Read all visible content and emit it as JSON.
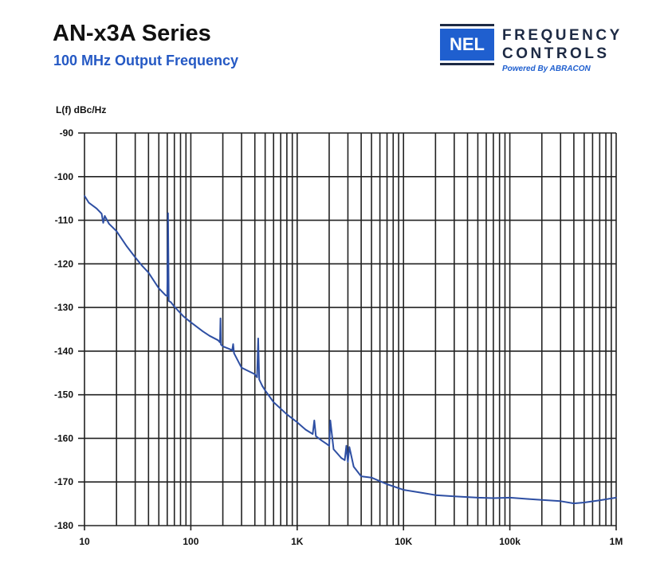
{
  "header": {
    "title": "AN-x3A Series",
    "subtitle": "100 MHz Output Frequency"
  },
  "logo": {
    "box_text": "NEL",
    "line1": "FREQUENCY",
    "line2": "CONTROLS",
    "powered": "Powered By ABRACON",
    "colors": {
      "blue": "#1f5fcf",
      "navy": "#1d2a44"
    }
  },
  "chart_data": {
    "type": "line",
    "title": "AN-x3A Series",
    "subtitle": "100 MHz Output Frequency",
    "xlabel": "",
    "ylabel": "L(f) dBc/Hz",
    "xscale": "log",
    "xlim": [
      10,
      1000000
    ],
    "ylim": [
      -180,
      -90
    ],
    "grid": true,
    "line_color": "#2e4fa3",
    "x_ticks": [
      {
        "value": 10,
        "label": "10"
      },
      {
        "value": 100,
        "label": "100"
      },
      {
        "value": 1000,
        "label": "1K"
      },
      {
        "value": 10000,
        "label": "10K"
      },
      {
        "value": 100000,
        "label": "100k"
      },
      {
        "value": 1000000,
        "label": "1M"
      }
    ],
    "y_ticks": [
      {
        "value": -90,
        "label": "-90"
      },
      {
        "value": -100,
        "label": "-100"
      },
      {
        "value": -110,
        "label": "-110"
      },
      {
        "value": -120,
        "label": "-120"
      },
      {
        "value": -130,
        "label": "-130"
      },
      {
        "value": -140,
        "label": "-140"
      },
      {
        "value": -150,
        "label": "-150"
      },
      {
        "value": -160,
        "label": "-160"
      },
      {
        "value": -170,
        "label": "-170"
      },
      {
        "value": -180,
        "label": "-180"
      }
    ],
    "series": [
      {
        "x": [
          10,
          11,
          13,
          14.5,
          15,
          15.5,
          17,
          20,
          25,
          30,
          35,
          40,
          50,
          58,
          60,
          61,
          62,
          65,
          70,
          85,
          100,
          130,
          150,
          180,
          188,
          190,
          192,
          200,
          230,
          245,
          250,
          255,
          300,
          350,
          400,
          420,
          430,
          440,
          470,
          500,
          600,
          800,
          1000,
          1200,
          1400,
          1450,
          1500,
          1700,
          1900,
          2000,
          2050,
          2200,
          2600,
          2800,
          2900,
          3000,
          3100,
          3400,
          4000,
          5000,
          7000,
          10000,
          15000,
          20000,
          30000,
          50000,
          70000,
          100000,
          150000,
          200000,
          300000,
          400000,
          500000,
          700000,
          1000000
        ],
        "y": [
          -104.4,
          -106,
          -107.3,
          -108.5,
          -110.6,
          -109,
          -110.8,
          -112.5,
          -116,
          -118.5,
          -120.5,
          -122,
          -125.6,
          -127.2,
          -127.4,
          -108.4,
          -128.5,
          -128.8,
          -129.8,
          -132,
          -133.4,
          -135.5,
          -136.5,
          -137.5,
          -138,
          -132.5,
          -138.5,
          -138.9,
          -139.5,
          -139.8,
          -138.4,
          -140.5,
          -143.8,
          -144.6,
          -145.3,
          -146,
          -137.1,
          -146.5,
          -148,
          -149,
          -151.7,
          -154.5,
          -156.3,
          -158,
          -159,
          -155.9,
          -159.5,
          -160.5,
          -161.3,
          -161.7,
          -155.9,
          -162.5,
          -164.5,
          -165,
          -161.7,
          -165.4,
          -162,
          -166.5,
          -168.7,
          -169,
          -170.5,
          -171.8,
          -172.5,
          -173,
          -173.3,
          -173.6,
          -173.7,
          -173.6,
          -173.9,
          -174.1,
          -174.4,
          -174.9,
          -174.7,
          -174.2,
          -173.6
        ]
      }
    ]
  }
}
